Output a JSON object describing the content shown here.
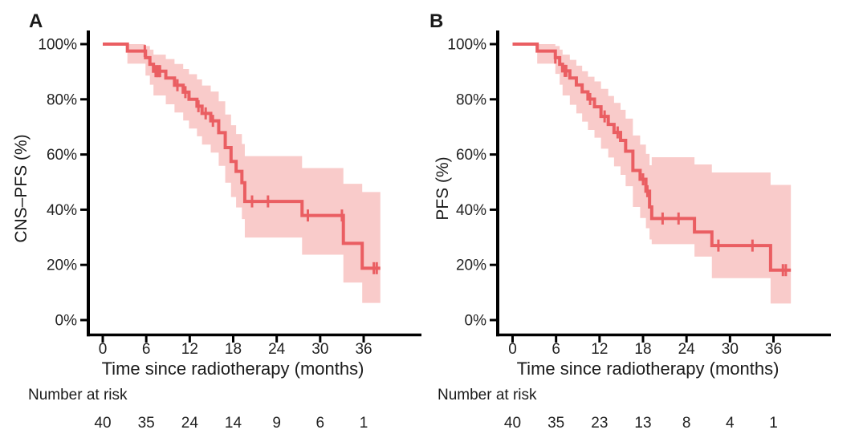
{
  "chart_data": [
    {
      "type": "line",
      "subtype": "kaplan_meier_step",
      "panel_letter": "A",
      "ylabel": "CNS–PFS (%)",
      "xlabel": "Time since radiotherapy (months)",
      "xticks": [
        0,
        6,
        12,
        18,
        24,
        30,
        36
      ],
      "ytick_values": [
        0,
        20,
        40,
        60,
        80,
        100
      ],
      "ytick_labels": [
        "0%",
        "20%",
        "40%",
        "60%",
        "80%",
        "100%"
      ],
      "xlim": [
        0,
        38.5
      ],
      "ylim": [
        0,
        100
      ],
      "x_end": 38.3,
      "steps": [
        [
          0,
          100,
          100,
          100
        ],
        [
          3.4,
          97.5,
          100,
          92.9
        ],
        [
          5.9,
          95.1,
          99.3,
          88.6
        ],
        [
          6.5,
          92.7,
          98.0,
          85.3
        ],
        [
          7.0,
          90.2,
          96.2,
          81.4
        ],
        [
          8.7,
          87.7,
          94.6,
          78.2
        ],
        [
          9.9,
          85.1,
          92.8,
          75.2
        ],
        [
          11.1,
          82.6,
          91.0,
          72.3
        ],
        [
          11.9,
          80.0,
          89.1,
          69.4
        ],
        [
          13.0,
          77.5,
          87.2,
          66.6
        ],
        [
          13.7,
          74.9,
          85.0,
          63.6
        ],
        [
          14.9,
          72.2,
          82.8,
          60.7
        ],
        [
          16.0,
          67.9,
          79.3,
          55.9
        ],
        [
          16.9,
          62.5,
          74.5,
          49.8
        ],
        [
          17.7,
          57.5,
          70.6,
          44.6
        ],
        [
          18.4,
          53.9,
          67.4,
          40.8
        ],
        [
          19.2,
          49.8,
          63.8,
          36.6
        ],
        [
          19.6,
          43.0,
          59.4,
          29.9
        ],
        [
          27.5,
          37.9,
          55.1,
          23.7
        ],
        [
          33.2,
          27.8,
          49.4,
          13.6
        ],
        [
          35.8,
          18.8,
          46.4,
          6.2
        ]
      ],
      "censor_times": [
        5.8,
        7.3,
        7.5,
        7.7,
        7.9,
        10.3,
        11.4,
        13.2,
        14.2,
        15.2,
        20.6,
        22.8,
        28.3,
        33.0,
        37.4,
        37.8
      ],
      "risk_label": "Number at risk",
      "risk_numbers": [
        40,
        35,
        24,
        14,
        9,
        6,
        1
      ],
      "line_color": "#ea5e62",
      "band_color": "#f9cbca",
      "axis_color": "#000000",
      "text_color": "#232323"
    },
    {
      "type": "line",
      "subtype": "kaplan_meier_step",
      "panel_letter": "B",
      "ylabel": "PFS (%)",
      "xlabel": "Time since radiotherapy (months)",
      "xticks": [
        0,
        6,
        12,
        18,
        24,
        30,
        36
      ],
      "ytick_values": [
        0,
        20,
        40,
        60,
        80,
        100
      ],
      "ytick_labels": [
        "0%",
        "20%",
        "40%",
        "60%",
        "80%",
        "100%"
      ],
      "xlim": [
        0,
        38.5
      ],
      "ylim": [
        0,
        100
      ],
      "x_end": 38.4,
      "steps": [
        [
          0,
          100,
          100,
          100
        ],
        [
          3.4,
          97.5,
          100,
          92.9
        ],
        [
          5.9,
          95.1,
          99.3,
          89.2
        ],
        [
          6.5,
          92.7,
          98.0,
          85.3
        ],
        [
          6.9,
          90.3,
          96.2,
          81.4
        ],
        [
          7.9,
          87.7,
          94.3,
          78.0
        ],
        [
          8.8,
          85.2,
          92.2,
          74.9
        ],
        [
          9.6,
          82.7,
          90.2,
          71.9
        ],
        [
          10.4,
          80.1,
          88.2,
          68.9
        ],
        [
          11.3,
          77.3,
          86.5,
          66.1
        ],
        [
          12.2,
          73.8,
          83.8,
          62.1
        ],
        [
          13.2,
          70.9,
          81.2,
          58.9
        ],
        [
          14.0,
          68.0,
          78.7,
          55.7
        ],
        [
          14.9,
          65.1,
          76.2,
          52.6
        ],
        [
          15.6,
          61.2,
          73.0,
          48.5
        ],
        [
          16.6,
          54.2,
          66.9,
          41.0
        ],
        [
          17.6,
          51.0,
          63.6,
          37.0
        ],
        [
          18.4,
          46.7,
          60.2,
          33.3
        ],
        [
          18.9,
          41.0,
          56.1,
          29.2
        ],
        [
          19.2,
          36.8,
          59.0,
          27.5
        ],
        [
          25.1,
          31.9,
          56.4,
          23.0
        ],
        [
          27.5,
          27.0,
          53.5,
          15.2
        ],
        [
          35.6,
          18.1,
          49.0,
          6.0
        ]
      ],
      "censor_times": [
        5.9,
        7.2,
        7.4,
        10.7,
        12.7,
        14.5,
        18.0,
        18.6,
        20.7,
        22.9,
        28.4,
        33.1,
        37.3,
        37.7
      ],
      "risk_label": "Number at risk",
      "risk_numbers": [
        40,
        35,
        23,
        13,
        8,
        4,
        1
      ],
      "line_color": "#ea5e62",
      "band_color": "#f9cbca",
      "axis_color": "#000000",
      "text_color": "#232323"
    }
  ]
}
